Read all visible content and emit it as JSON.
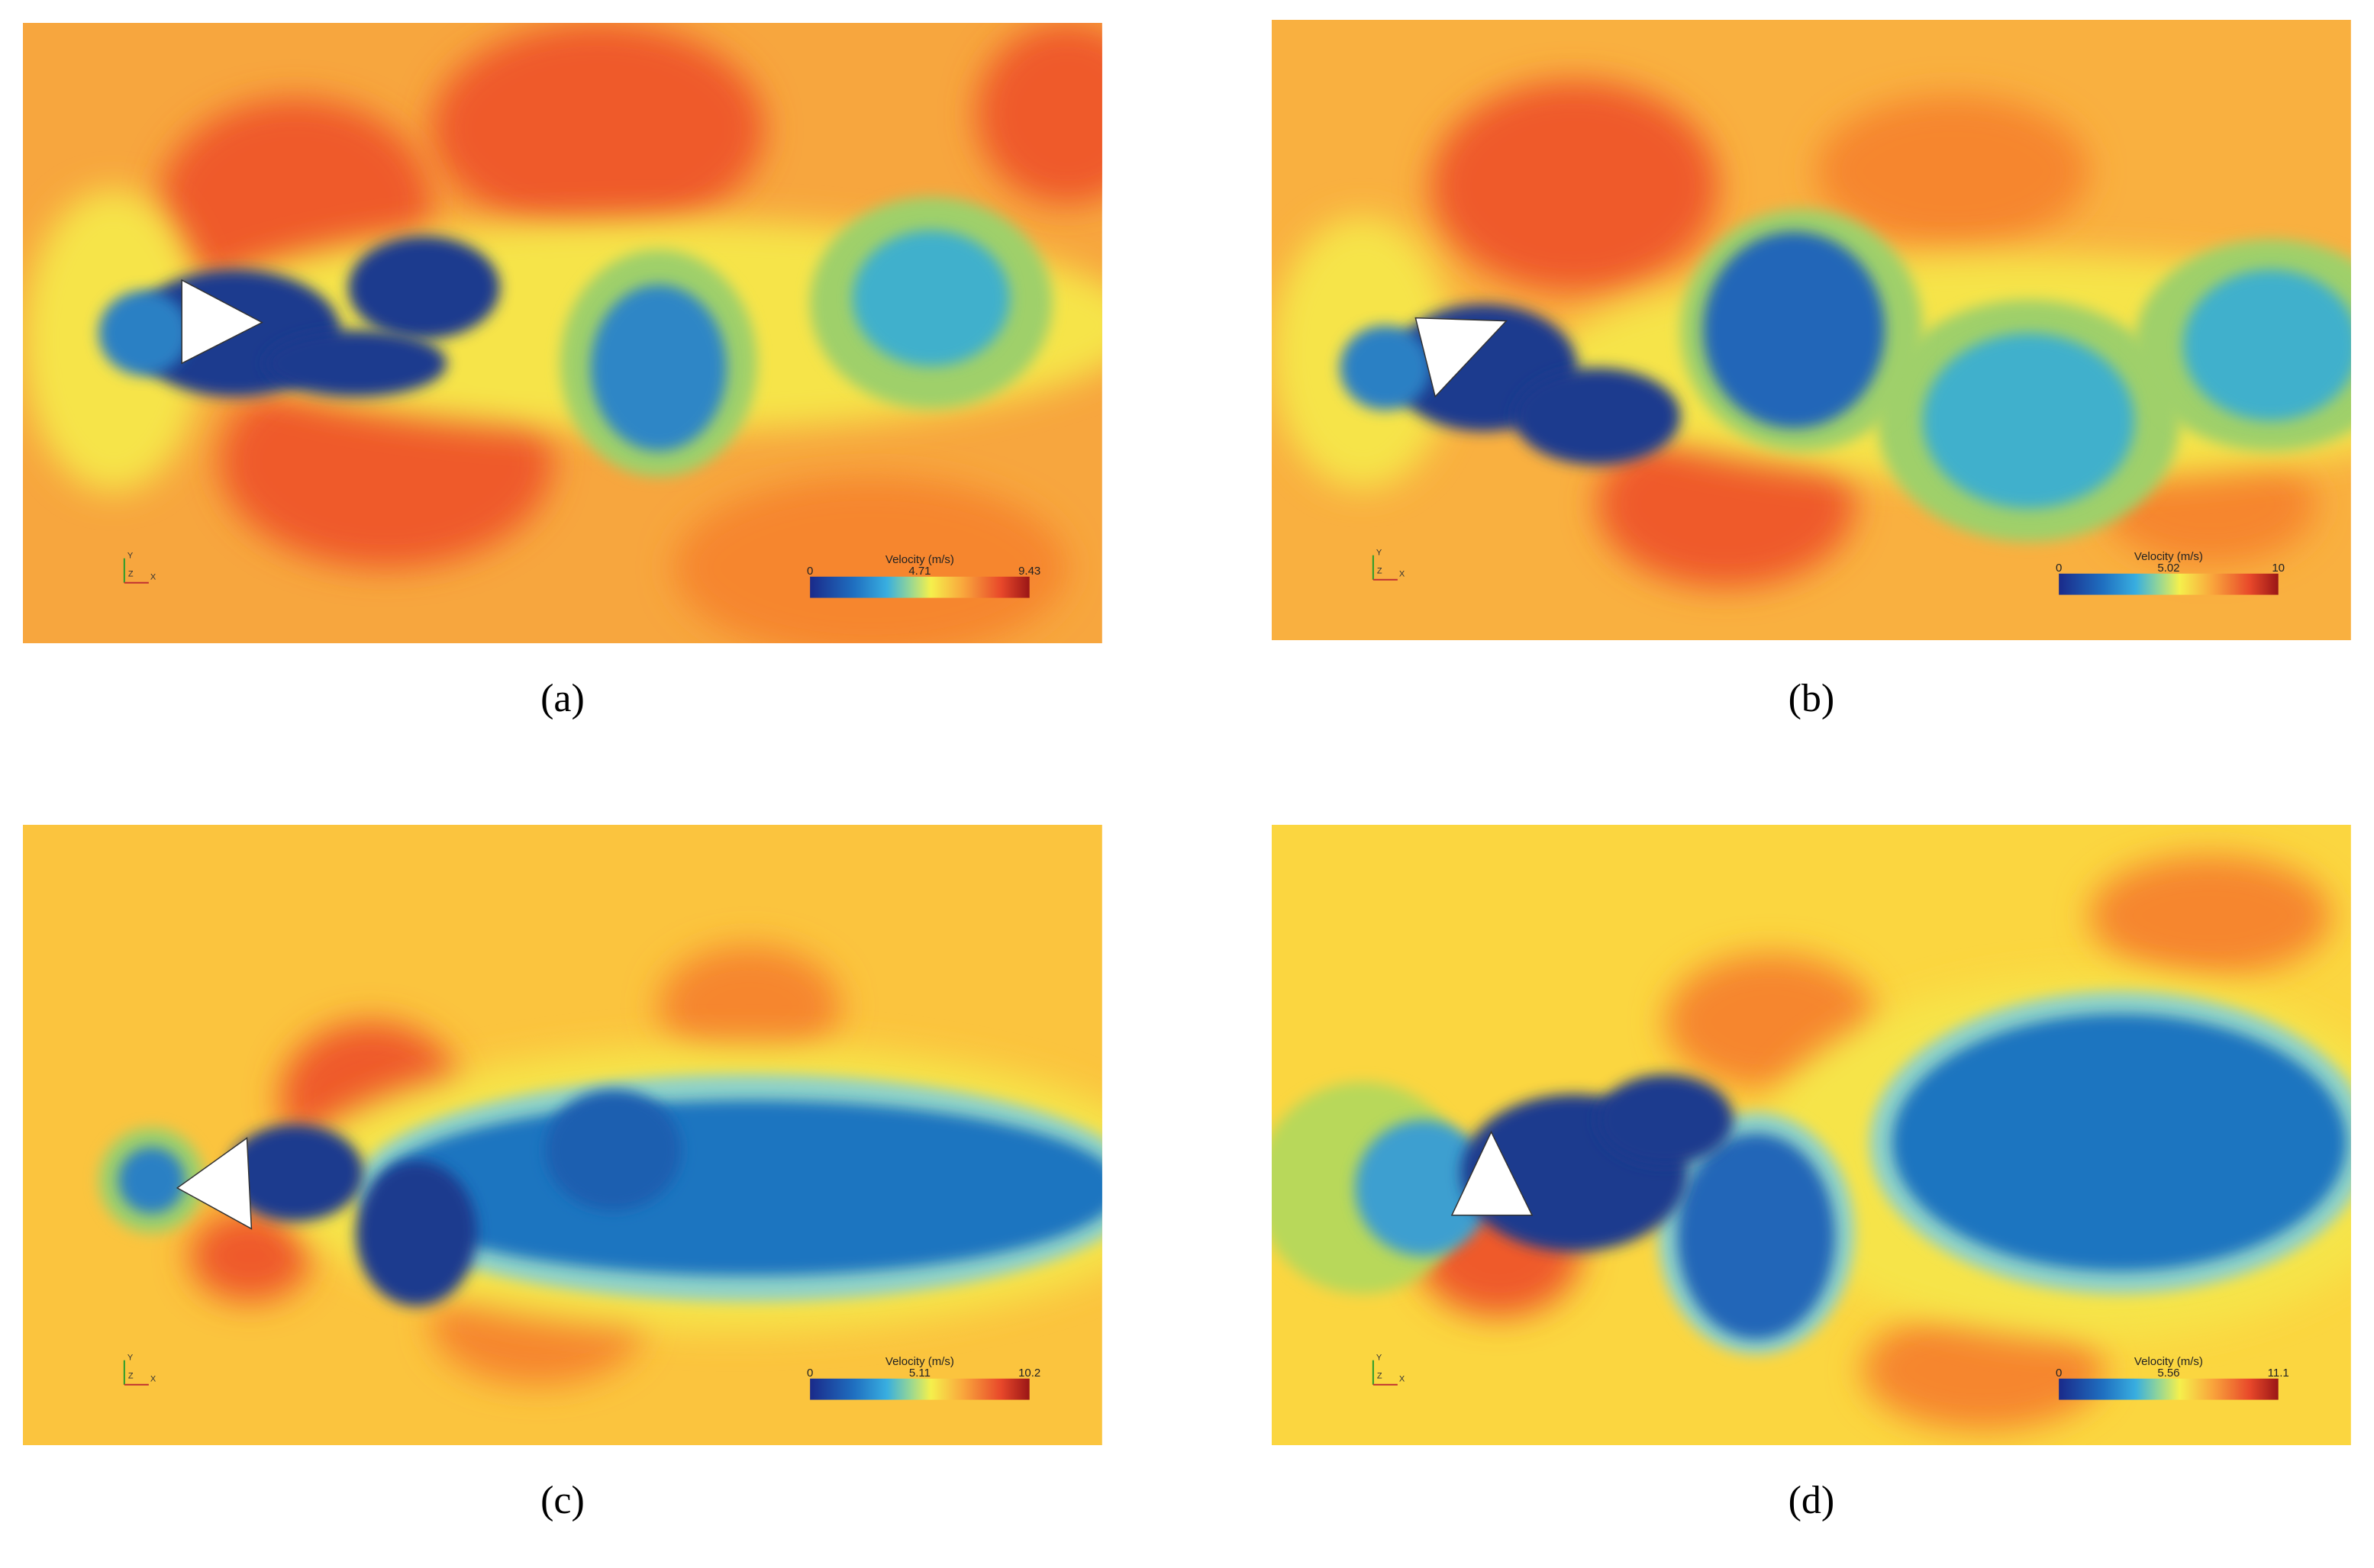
{
  "panels": [
    {
      "caption": "(a)",
      "legend_title": "Velocity (m/s)",
      "legend_min": "0",
      "legend_mid": "4.71",
      "legend_max": "9.43",
      "axis_labels": [
        "Y",
        "Z",
        "X"
      ]
    },
    {
      "caption": "(b)",
      "legend_title": "Velocity (m/s)",
      "legend_min": "0",
      "legend_mid": "5.02",
      "legend_max": "10",
      "axis_labels": [
        "Y",
        "Z",
        "X"
      ]
    },
    {
      "caption": "(c)",
      "legend_title": "Velocity (m/s)",
      "legend_min": "0",
      "legend_mid": "5.11",
      "legend_max": "10.2",
      "axis_labels": [
        "Y",
        "Z",
        "X"
      ]
    },
    {
      "caption": "(d)",
      "legend_title": "Velocity (m/s)",
      "legend_min": "0",
      "legend_mid": "5.56",
      "legend_max": "11.1",
      "axis_labels": [
        "Y",
        "Z",
        "X"
      ]
    }
  ]
}
